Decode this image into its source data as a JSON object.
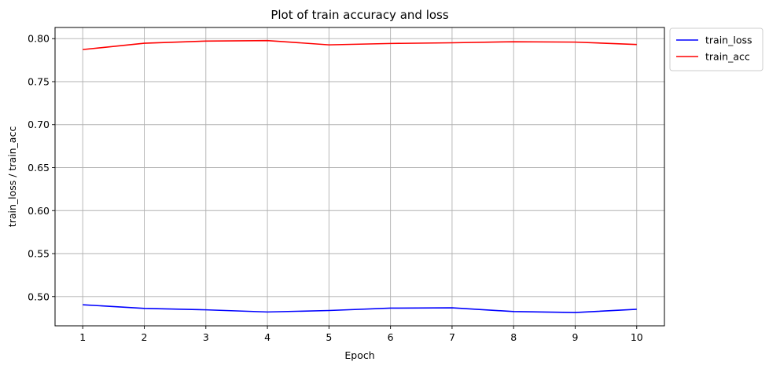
{
  "chart_data": {
    "type": "line",
    "title": "Plot of train accuracy and loss",
    "xlabel": "Epoch",
    "ylabel": "train_loss / train_acc",
    "x": [
      1,
      2,
      3,
      4,
      5,
      6,
      7,
      8,
      9,
      10
    ],
    "xlim": [
      0.55,
      10.45
    ],
    "ylim": [
      0.466,
      0.813
    ],
    "xticks": [
      "1",
      "2",
      "3",
      "4",
      "5",
      "6",
      "7",
      "8",
      "9",
      "10"
    ],
    "yticks": [
      "0.50",
      "0.55",
      "0.60",
      "0.65",
      "0.70",
      "0.75",
      "0.80"
    ],
    "grid": true,
    "legend_position": "upper right, outside plot area",
    "series": [
      {
        "name": "train_loss",
        "color": "#0000ff",
        "values": [
          0.4905,
          0.4863,
          0.4846,
          0.4821,
          0.4838,
          0.4866,
          0.4869,
          0.4826,
          0.4815,
          0.4852
        ]
      },
      {
        "name": "train_acc",
        "color": "#ff0000",
        "values": [
          0.7873,
          0.7947,
          0.7972,
          0.7978,
          0.7928,
          0.7944,
          0.7952,
          0.7964,
          0.796,
          0.7932
        ]
      }
    ]
  }
}
